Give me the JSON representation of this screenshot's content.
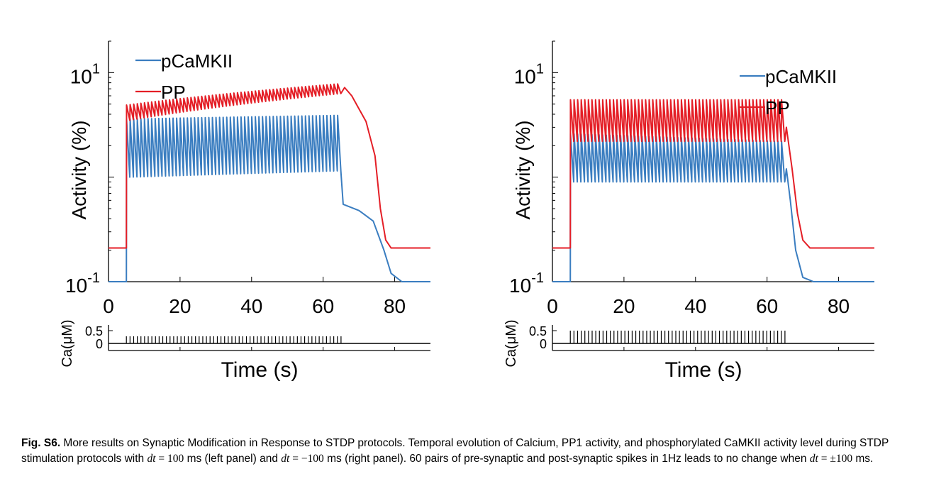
{
  "chart_data": [
    {
      "type": "line",
      "panel": "left",
      "ylabel": "Activity (%)",
      "xlabel": "",
      "xticks": [
        "0",
        "20",
        "40",
        "60",
        "80"
      ],
      "yticks": [
        {
          "base": "10",
          "exp": "-1"
        },
        {
          "base": "10",
          "exp": "1"
        }
      ],
      "xlim": [
        0,
        90
      ],
      "ylim": [
        0.1,
        20
      ],
      "yscale": "log",
      "legend": "top-left",
      "stim_start": 5,
      "stim_end": 65,
      "series": [
        {
          "name": "pCaMKII",
          "color": "#3a7dc0",
          "baseline": 0.1,
          "osc_low_start": 1.0,
          "osc_low_end": 1.15,
          "osc_high_start": 3.6,
          "osc_high_end": 3.9,
          "decay": [
            [
              65.6,
              0.55
            ],
            [
              70,
              0.48
            ],
            [
              74,
              0.38
            ],
            [
              77,
              0.2
            ],
            [
              79,
              0.12
            ],
            [
              82,
              0.1
            ],
            [
              90,
              0.1
            ]
          ]
        },
        {
          "name": "PP",
          "color": "#e41e26",
          "baseline": 0.21,
          "osc_low_start": 3.5,
          "osc_low_end": 6.3,
          "osc_high_start": 4.9,
          "osc_high_end": 7.8,
          "decay": [
            [
              66,
              7.2
            ],
            [
              68,
              6.0
            ],
            [
              72,
              3.4
            ],
            [
              74.5,
              1.6
            ],
            [
              76,
              0.5
            ],
            [
              77.5,
              0.25
            ],
            [
              79,
              0.21
            ],
            [
              90,
              0.21
            ]
          ]
        }
      ],
      "calcium": {
        "ylabel": "Ca(μM)",
        "yticks": [
          "0.5",
          "0"
        ],
        "baseline": 0.0,
        "peak": 0.28,
        "pulses": 60,
        "start": 5,
        "end": 65
      }
    },
    {
      "type": "line",
      "panel": "right",
      "ylabel": "Activity (%)",
      "xlabel": "",
      "xticks": [
        "0",
        "20",
        "40",
        "60",
        "80"
      ],
      "yticks": [
        {
          "base": "10",
          "exp": "-1"
        },
        {
          "base": "10",
          "exp": "1"
        }
      ],
      "xlim": [
        0,
        90
      ],
      "ylim": [
        0.1,
        20
      ],
      "yscale": "log",
      "legend": "top-right",
      "stim_start": 5,
      "stim_end": 65,
      "series": [
        {
          "name": "pCaMKII",
          "color": "#3a7dc0",
          "baseline": 0.1,
          "osc_low_start": 0.9,
          "osc_low_end": 0.9,
          "osc_high_start": 2.6,
          "osc_high_end": 2.2,
          "decay": [
            [
              65.4,
              1.2
            ],
            [
              66.5,
              0.6
            ],
            [
              68,
              0.2
            ],
            [
              70,
              0.11
            ],
            [
              73,
              0.1
            ],
            [
              90,
              0.1
            ]
          ]
        },
        {
          "name": "PP",
          "color": "#e41e26",
          "baseline": 0.21,
          "osc_low_start": 2.2,
          "osc_low_end": 2.2,
          "osc_high_start": 5.5,
          "osc_high_end": 5.5,
          "decay": [
            [
              65.4,
              3.0
            ],
            [
              67,
              1.2
            ],
            [
              68.5,
              0.45
            ],
            [
              70,
              0.25
            ],
            [
              72,
              0.21
            ],
            [
              90,
              0.21
            ]
          ]
        }
      ],
      "calcium": {
        "ylabel": "Ca(μM)",
        "yticks": [
          "0.5",
          "0"
        ],
        "baseline": 0.0,
        "peak": 0.5,
        "pulses": 60,
        "start": 5,
        "end": 65
      }
    }
  ],
  "shared_xlabel": "Time (s)",
  "caption": {
    "label": "Fig. S6.",
    "part1": " More results on Synaptic Modification in Response to STDP protocols. Temporal evolution of Calcium, PP1 activity, and phosphorylated CaMKII activity level during STDP stimulation protocols with ",
    "dt1": "dt",
    "eq1": " = 100",
    "part2": " ms (left panel) and ",
    "dt2": "dt",
    "eq2": " = −100",
    "part3": " ms (right panel). 60 pairs of pre-synaptic and post-synaptic spikes in 1Hz leads to no change when ",
    "dt3": "dt",
    "eq3": " = ±100",
    "part4": " ms."
  }
}
